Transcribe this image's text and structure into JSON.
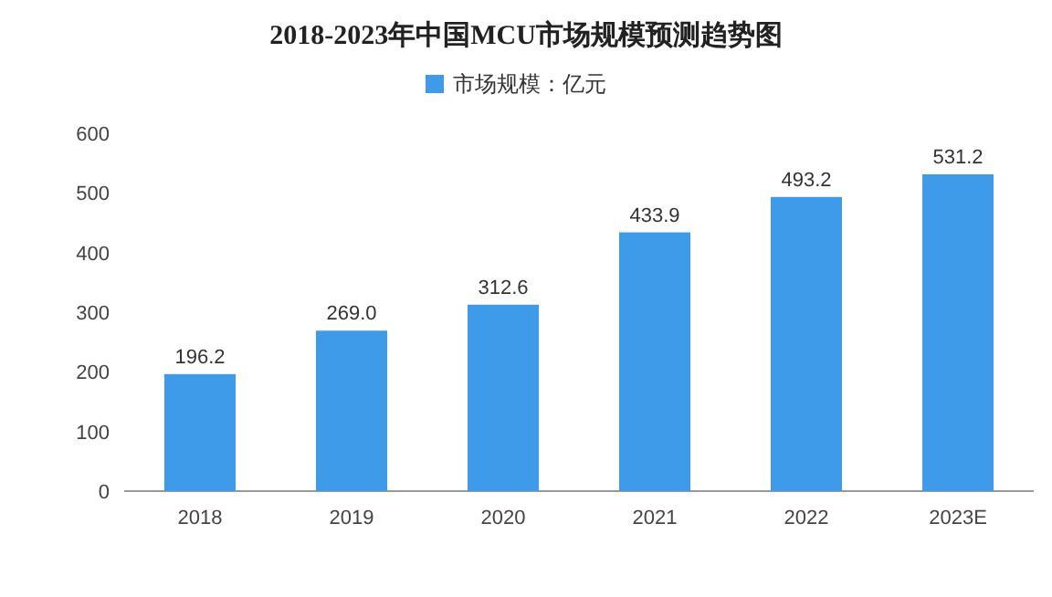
{
  "chart_data": {
    "type": "bar",
    "title": "2018-2023年中国MCU市场规模预测趋势图",
    "categories": [
      "2018",
      "2019",
      "2020",
      "2021",
      "2022",
      "2023E"
    ],
    "series": [
      {
        "name": "市场规模：亿元",
        "color": "#3d9be9",
        "values": [
          196.2,
          269.0,
          312.6,
          433.9,
          493.2,
          531.2
        ]
      }
    ],
    "value_labels": [
      "196.2",
      "269.0",
      "312.6",
      "433.9",
      "493.2",
      "531.2"
    ],
    "ylim": [
      0,
      600
    ],
    "yticks": [
      0,
      100,
      200,
      300,
      400,
      500,
      600
    ],
    "legend": "top"
  }
}
